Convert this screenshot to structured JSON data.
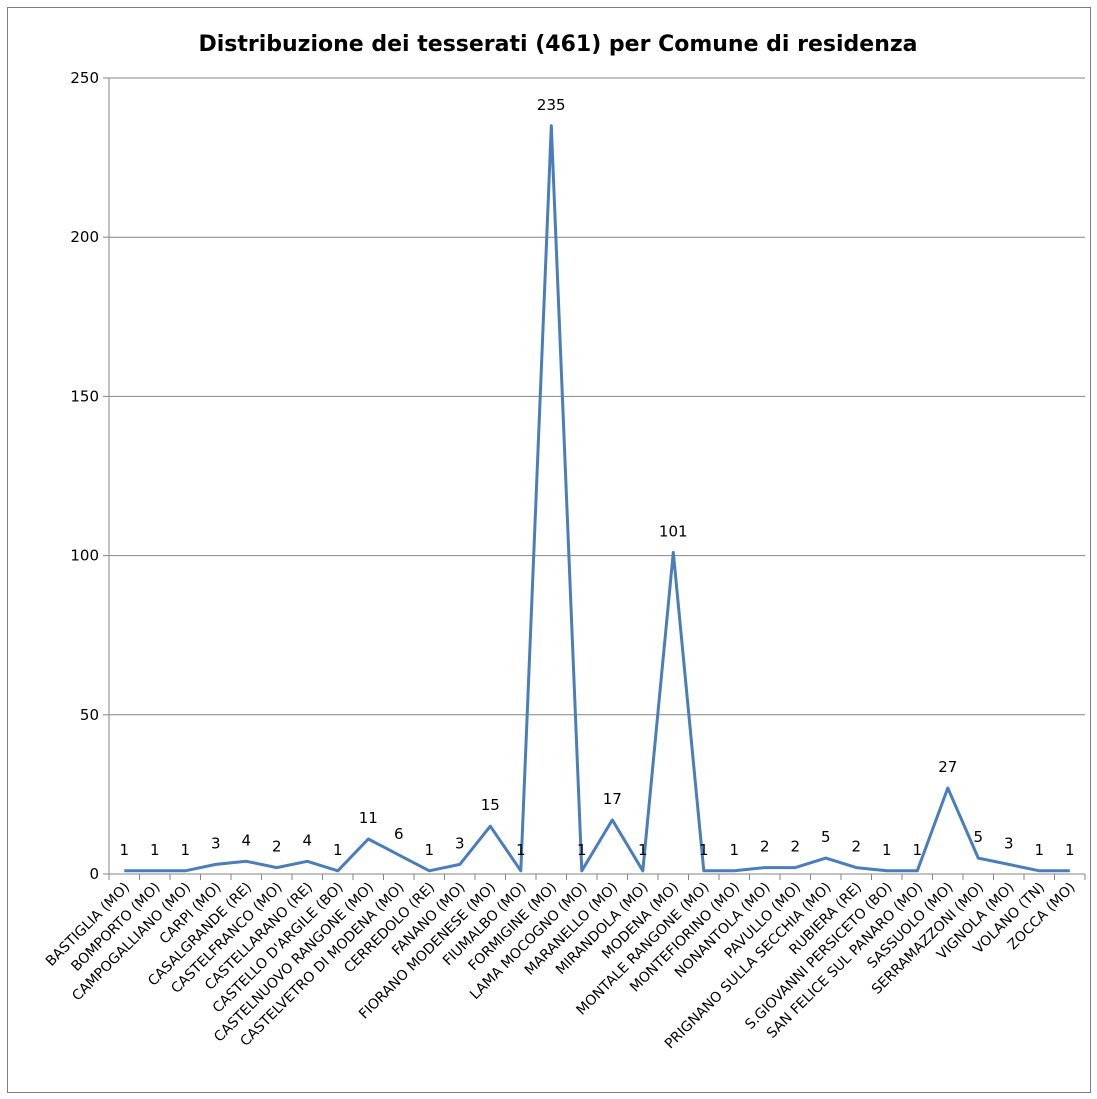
{
  "chart_data": {
    "type": "line",
    "title": "Distribuzione dei tesserati (461) per Comune di residenza",
    "xlabel": "",
    "ylabel": "",
    "ylim": [
      0,
      250
    ],
    "yticks": [
      0,
      50,
      100,
      150,
      200,
      250
    ],
    "grid": true,
    "legend": "none",
    "series_color": "#4a7ebb",
    "categories": [
      "BASTIGLIA (MO)",
      "BOMPORTO (MO)",
      "CAMPOGALLIANO (MO)",
      "CARPI (MO)",
      "CASALGRANDE (RE)",
      "CASTELFRANCO (MO)",
      "CASTELLARANO (RE)",
      "CASTELLO D'ARGILE (BO)",
      "CASTELNUOVO RANGONE (MO)",
      "CASTELVETRO DI MODENA (MO)",
      "CERREDOLO (RE)",
      "FANANO (MO)",
      "FIORANO MODENESE (MO)",
      "FIUMALBO (MO)",
      "FORMIGINE (MO)",
      "LAMA MOCOGNO (MO)",
      "MARANELLO (MO)",
      "MIRANDOLA (MO)",
      "MODENA (MO)",
      "MONTALE RANGONE (MO)",
      "MONTEFIORINO (MO)",
      "NONANTOLA (MO)",
      "PAVULLO (MO)",
      "PRIGNANO SULLA SECCHIA (MO)",
      "RUBIERA (RE)",
      "S.GIOVANNI PERSICETO (BO)",
      "SAN FELICE SUL PANARO (MO)",
      "SASSUOLO (MO)",
      "SERRAMAZZONI (MO)",
      "VIGNOLA (MO)",
      "VOLANO (TN)",
      "ZOCCA (MO)"
    ],
    "values": [
      1,
      1,
      1,
      3,
      4,
      2,
      4,
      1,
      11,
      6,
      1,
      3,
      15,
      1,
      235,
      1,
      17,
      1,
      101,
      1,
      1,
      2,
      2,
      5,
      2,
      1,
      1,
      27,
      5,
      3,
      1,
      1
    ]
  }
}
